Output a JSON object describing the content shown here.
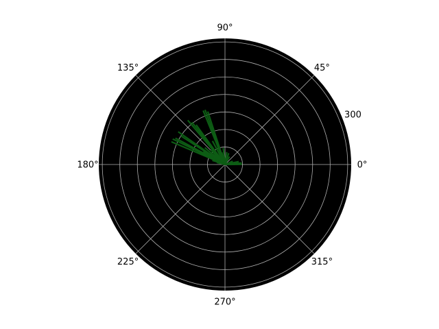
{
  "chart_data": {
    "type": "polar-stem",
    "theta_labels": [
      {
        "deg": 0,
        "text": "0°"
      },
      {
        "deg": 45,
        "text": "45°"
      },
      {
        "deg": 90,
        "text": "90°"
      },
      {
        "deg": 135,
        "text": "135°"
      },
      {
        "deg": 180,
        "text": "180°"
      },
      {
        "deg": 225,
        "text": "225°"
      },
      {
        "deg": 270,
        "text": "270°"
      },
      {
        "deg": 315,
        "text": "315°"
      }
    ],
    "r_tick_values": [
      50,
      100,
      150,
      200,
      250,
      300,
      350
    ],
    "r_tick_label": {
      "text": "300",
      "value": 300
    },
    "r_max": 360,
    "grid": true,
    "colors": {
      "background": "#000000",
      "grid": "#b0b0b0",
      "stems": "#0d5c14"
    },
    "stems": [
      {
        "theta": 0.6,
        "r": 48
      },
      {
        "theta": 5.3,
        "r": 48
      },
      {
        "theta": 12.0,
        "r": 40
      },
      {
        "theta": 23.0,
        "r": 24
      },
      {
        "theta": 60.0,
        "r": 26
      },
      {
        "theta": 72.0,
        "r": 34
      },
      {
        "theta": 82.0,
        "r": 36
      },
      {
        "theta": 96.0,
        "r": 48
      },
      {
        "theta": 105.0,
        "r": 36
      },
      {
        "theta": 108.0,
        "r": 159
      },
      {
        "theta": 110.0,
        "r": 166
      },
      {
        "theta": 112.0,
        "r": 166
      },
      {
        "theta": 118.0,
        "r": 76
      },
      {
        "theta": 126.0,
        "r": 140
      },
      {
        "theta": 128.0,
        "r": 153
      },
      {
        "theta": 130.0,
        "r": 165
      },
      {
        "theta": 134.0,
        "r": 58
      },
      {
        "theta": 140.0,
        "r": 75
      },
      {
        "theta": 145.0,
        "r": 163
      },
      {
        "theta": 147.0,
        "r": 150
      },
      {
        "theta": 150.0,
        "r": 72
      },
      {
        "theta": 152.0,
        "r": 160
      },
      {
        "theta": 154.0,
        "r": 166
      },
      {
        "theta": 157.0,
        "r": 166
      },
      {
        "theta": 162.0,
        "r": 38
      },
      {
        "theta": 166.0,
        "r": 24
      }
    ]
  }
}
